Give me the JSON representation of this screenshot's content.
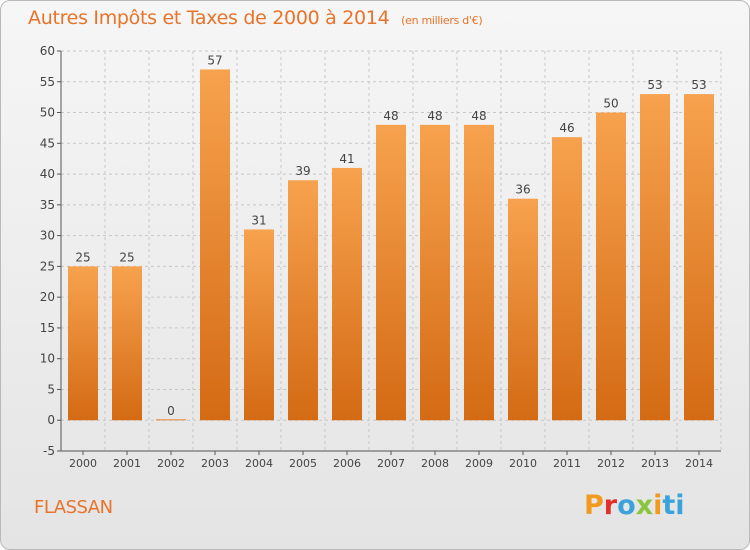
{
  "header": {
    "title": "Autres Impôts et Taxes de 2000 à 2014",
    "unit": "(en milliers d'€)"
  },
  "footer": {
    "commune": "FLASSAN",
    "logo_letters": [
      "P",
      "r",
      "o",
      "x",
      "i",
      "ti"
    ]
  },
  "colors": {
    "title": "#e8732a",
    "bar_top": "#f7a24e",
    "bar_bottom": "#d46a14",
    "grid": "#c8c8c8"
  },
  "chart_data": {
    "type": "bar",
    "categories": [
      "2000",
      "2001",
      "2002",
      "2003",
      "2004",
      "2005",
      "2006",
      "2007",
      "2008",
      "2009",
      "2010",
      "2011",
      "2012",
      "2013",
      "2014"
    ],
    "values": [
      25,
      25,
      0,
      57,
      31,
      39,
      41,
      48,
      48,
      48,
      36,
      46,
      50,
      53,
      53
    ],
    "ylim": [
      -5,
      60
    ],
    "yticks": [
      -5,
      0,
      5,
      10,
      15,
      20,
      25,
      30,
      35,
      40,
      45,
      50,
      55,
      60
    ],
    "grid": true
  }
}
